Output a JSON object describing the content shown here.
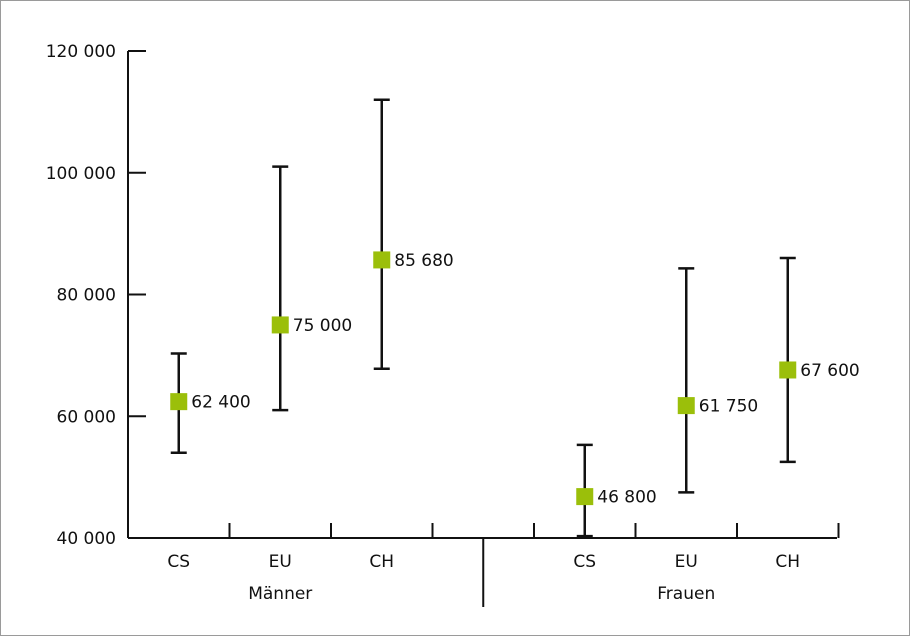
{
  "chart_data": {
    "type": "scatter",
    "subtype": "point-with-range",
    "ylim": [
      40000,
      120000
    ],
    "y_ticks": [
      {
        "value": 40000,
        "label": "40 000"
      },
      {
        "value": 60000,
        "label": "60 000"
      },
      {
        "value": 80000,
        "label": "80 000"
      },
      {
        "value": 100000,
        "label": "100 000"
      },
      {
        "value": 120000,
        "label": "120 000"
      }
    ],
    "groups": [
      {
        "name": "Männer",
        "points": [
          {
            "category": "CS",
            "value": 62400,
            "label": "62 400",
            "low": 54000,
            "high": 70300
          },
          {
            "category": "EU",
            "value": 75000,
            "label": "75 000",
            "low": 61000,
            "high": 101000
          },
          {
            "category": "CH",
            "value": 85680,
            "label": "85 680",
            "low": 67800,
            "high": 112000
          }
        ]
      },
      {
        "name": "Frauen",
        "points": [
          {
            "category": "CS",
            "value": 46800,
            "label": "46 800",
            "low": 40300,
            "high": 55300
          },
          {
            "category": "EU",
            "value": 61750,
            "label": "61 750",
            "low": 47500,
            "high": 84300
          },
          {
            "category": "CH",
            "value": 67600,
            "label": "67 600",
            "low": 52500,
            "high": 86000
          }
        ]
      }
    ],
    "marker_color": "#9bbf0a",
    "axis_color": "#111111",
    "grid": false
  }
}
